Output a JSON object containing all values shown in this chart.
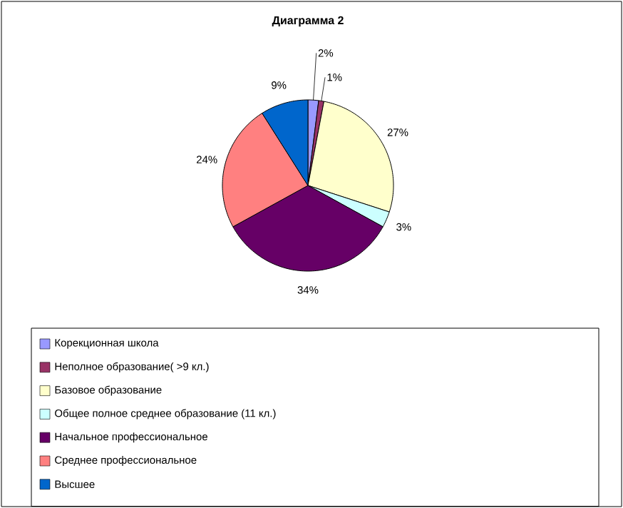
{
  "chart_data": {
    "type": "pie",
    "title": "Диаграмма 2",
    "categories": [
      "Корекционная школа",
      "Неполное образование( >9 кл.)",
      "Базовое образование",
      "Общее полное среднее образование (11 кл.)",
      "Начальное профессиональное",
      "Среднее профессиональное",
      "Высшее"
    ],
    "values": [
      2,
      1,
      27,
      3,
      34,
      24,
      9
    ],
    "value_labels": [
      "2%",
      "1%",
      "27%",
      "3%",
      "34%",
      "24%",
      "9%"
    ],
    "colors": [
      "#9999ff",
      "#993366",
      "#ffffcc",
      "#ccffff",
      "#660066",
      "#ff8080",
      "#0066cc"
    ],
    "legend": "bottom"
  }
}
